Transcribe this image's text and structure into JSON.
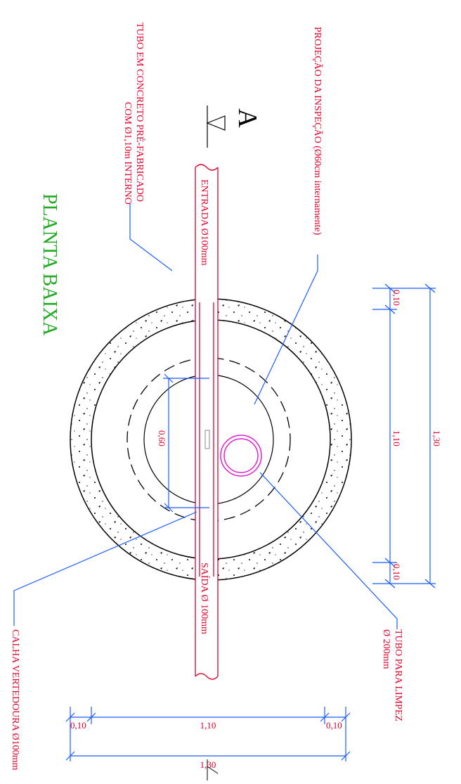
{
  "title": "PLANTA BAIXA",
  "section_mark": "A",
  "labels": {
    "tube": [
      "TUBO EM CONCRETO PRÉ-FABRICADO",
      "COM Ø1,10m INTERNO"
    ],
    "inspection": "PROJEÇÃO DA INSPEÇÃO (Ø60cm internamente)",
    "inlet": "ENTRADA Ø100mm",
    "outlet": "SAÍDA Ø 100mm",
    "cleaning": [
      "TUBO PARA LIMPEZ",
      "Ø 200mm"
    ],
    "gutter": "CALHA VERTEDOURA Ø100mm"
  },
  "dimensions": {
    "vertical": [
      "0,10",
      "1,10",
      "0,10",
      "1,30"
    ],
    "inner": "0,60",
    "horizontal": [
      "0,10",
      "1,10",
      "0,10",
      "1,30"
    ]
  }
}
